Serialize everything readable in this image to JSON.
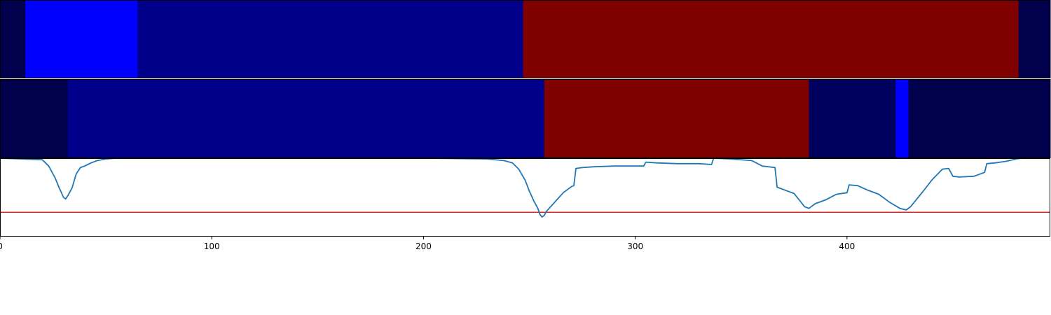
{
  "chart_data": [
    {
      "type": "heatmap",
      "segments": [
        {
          "start": 0,
          "end": 12,
          "color": "#00004c"
        },
        {
          "start": 12,
          "end": 65,
          "color": "#0000ff"
        },
        {
          "start": 65,
          "end": 247,
          "color": "#00008b"
        },
        {
          "start": 247,
          "end": 481,
          "color": "#800000"
        },
        {
          "start": 481,
          "end": 496,
          "color": "#00004c"
        }
      ]
    },
    {
      "type": "heatmap",
      "segments": [
        {
          "start": 0,
          "end": 32,
          "color": "#00004c"
        },
        {
          "start": 32,
          "end": 257,
          "color": "#00008b"
        },
        {
          "start": 257,
          "end": 382,
          "color": "#800000"
        },
        {
          "start": 382,
          "end": 423,
          "color": "#00005e"
        },
        {
          "start": 423,
          "end": 429,
          "color": "#0000ff"
        },
        {
          "start": 429,
          "end": 496,
          "color": "#00004c"
        }
      ]
    },
    {
      "type": "line",
      "xlim": [
        0,
        496
      ],
      "ylim": [
        0,
        1
      ],
      "xticks": [
        0,
        100,
        200,
        300,
        400
      ],
      "threshold": 0.31,
      "threshold_color": "#d62728",
      "line_color": "#1f77b4",
      "series": [
        {
          "x": [
            0,
            10,
            20,
            23,
            26,
            28,
            30,
            31,
            32,
            34,
            36,
            38,
            40,
            43,
            46,
            50,
            55,
            60,
            70,
            100,
            150,
            200,
            230,
            238,
            242,
            245,
            248,
            250,
            252,
            254,
            255,
            256,
            257,
            258,
            260,
            262,
            264,
            266,
            268,
            270,
            271,
            272,
            275,
            280,
            290,
            300,
            304,
            305,
            310,
            320,
            330,
            336,
            337,
            345,
            355,
            360,
            366,
            367,
            370,
            375,
            380,
            382,
            385,
            390,
            395,
            400,
            401,
            405,
            410,
            415,
            420,
            425,
            428,
            430,
            433,
            436,
            440,
            445,
            448,
            450,
            453,
            460,
            465,
            466,
            470,
            475,
            480,
            485,
            490,
            496
          ],
          "y": [
            1.0,
            0.99,
            0.98,
            0.9,
            0.75,
            0.62,
            0.5,
            0.48,
            0.52,
            0.62,
            0.8,
            0.88,
            0.9,
            0.94,
            0.97,
            0.99,
            1.0,
            1.0,
            1.0,
            1.0,
            1.0,
            1.0,
            0.99,
            0.97,
            0.94,
            0.86,
            0.72,
            0.58,
            0.46,
            0.36,
            0.28,
            0.25,
            0.27,
            0.32,
            0.38,
            0.44,
            0.5,
            0.56,
            0.6,
            0.64,
            0.65,
            0.87,
            0.88,
            0.89,
            0.9,
            0.9,
            0.9,
            0.95,
            0.94,
            0.93,
            0.93,
            0.92,
            1.0,
            0.99,
            0.97,
            0.9,
            0.88,
            0.63,
            0.6,
            0.55,
            0.38,
            0.36,
            0.42,
            0.47,
            0.54,
            0.56,
            0.66,
            0.65,
            0.59,
            0.54,
            0.44,
            0.36,
            0.34,
            0.38,
            0.48,
            0.58,
            0.72,
            0.86,
            0.87,
            0.77,
            0.76,
            0.77,
            0.82,
            0.93,
            0.94,
            0.96,
            0.99,
            1.01,
            1.02,
            1.02
          ]
        }
      ]
    }
  ]
}
